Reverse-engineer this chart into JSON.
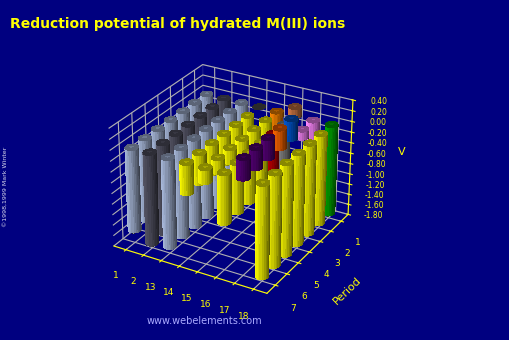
{
  "title": "Reduction potential of hydrated M(III) ions",
  "ylabel": "Period",
  "zlabel": "V",
  "background_color": "#000080",
  "title_color": "#ffff00",
  "axis_color": "#ffff00",
  "watermark": "www.webelements.com",
  "groups": [
    1,
    2,
    13,
    14,
    15,
    16,
    17,
    18
  ],
  "periods": [
    1,
    2,
    3,
    4,
    5,
    6,
    7
  ],
  "zlim": [
    -1.8,
    0.4
  ],
  "zticks": [
    0.4,
    0.2,
    0.0,
    -0.2,
    -0.4,
    -0.6,
    -0.8,
    -1.0,
    -1.2,
    -1.4,
    -1.6,
    -1.8
  ],
  "values": {
    "1": [
      -1.55,
      -1.55,
      -1.55,
      -1.55,
      -1.55,
      -1.55,
      -1.55
    ],
    "2": [
      -1.7,
      -1.7,
      -1.7,
      -1.7,
      -1.7,
      -1.7,
      -1.7
    ],
    "13": [
      -1.66,
      -1.66,
      -1.66,
      -1.66,
      -1.66,
      -1.66,
      -1.66
    ],
    "14": [
      0.0,
      -0.55,
      -0.55,
      -0.55,
      -0.55,
      -0.55,
      -0.55
    ],
    "15": [
      -1.35,
      -0.25,
      -0.25,
      -0.25,
      -0.25,
      -0.25,
      -0.25
    ],
    "16": [
      0.17,
      -1.0,
      -1.5,
      -0.9,
      -0.9,
      -0.9,
      -0.9
    ],
    "17": [
      -0.74,
      -0.15,
      0.36,
      0.36,
      0.36,
      0.36,
      0.36
    ],
    "18": [
      -1.7,
      -1.7,
      -1.7,
      -1.7,
      -1.7,
      -1.7,
      -1.7
    ]
  },
  "bar_colors": {
    "1": [
      "#aabbdd",
      "#aabbdd",
      "#aabbdd",
      "#aabbdd",
      "#aabbdd",
      "#aabbdd",
      "#aabbdd"
    ],
    "2": [
      "#555566",
      "#555566",
      "#555566",
      "#555566",
      "#555566",
      "#555566",
      "#555566"
    ],
    "13": [
      "#aabbdd",
      "#aabbdd",
      "#aabbdd",
      "#aabbdd",
      "#aabbdd",
      "#aabbdd",
      "#aabbdd"
    ],
    "14": [
      "#cccccc",
      "#ffff00",
      "#ffff00",
      "#ffff00",
      "#ffff00",
      "#ffff00",
      "#ffff00"
    ],
    "15": [
      "#ff8800",
      "#ffff00",
      "#ffff00",
      "#ffff00",
      "#ffff00",
      "#ffff00",
      "#ffff00"
    ],
    "16": [
      "#cc7744",
      "#888888",
      "#cc0000",
      "#ffff00",
      "#ffff00",
      "#ffff00",
      "#ffff00"
    ],
    "17": [
      "#ff88ff",
      "#ff88ff",
      "#0055cc",
      "#ff6600",
      "#550077",
      "#550077",
      "#550077"
    ],
    "18": [
      "#00aa00",
      "#ffff00",
      "#ffff00",
      "#ffff00",
      "#ffff00",
      "#ffff00",
      "#ffff00"
    ]
  },
  "view_elev": 28,
  "view_azim": -60
}
